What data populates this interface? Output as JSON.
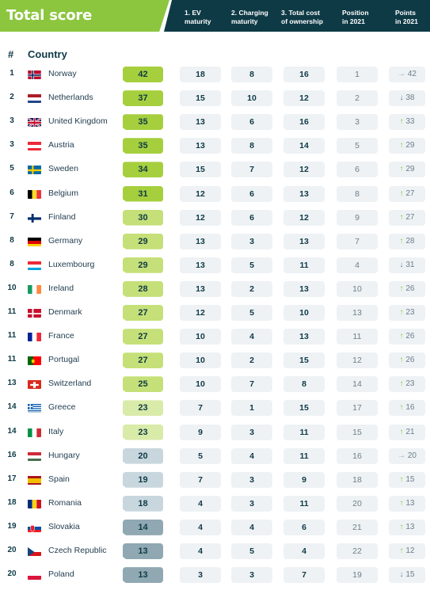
{
  "header": {
    "title": "Total score",
    "columns": [
      {
        "l1": "1. EV",
        "l2": "maturity"
      },
      {
        "l1": "2. Charging",
        "l2": "maturity"
      },
      {
        "l1": "3. Total cost",
        "l2": "of ownership"
      },
      {
        "l1": "Position",
        "l2": "in 2021"
      },
      {
        "l1": "Points",
        "l2": "in 2021"
      }
    ]
  },
  "table": {
    "col_rank": "#",
    "col_country": "Country",
    "rows": [
      {
        "rank": "1",
        "country": "Norway",
        "flag": "norway-flag",
        "score": "42",
        "shade": "g1",
        "ev": "18",
        "charging": "8",
        "tco": "16",
        "pos": "1",
        "trend": "→",
        "trend_dir": "eq",
        "pts": "42"
      },
      {
        "rank": "2",
        "country": "Netherlands",
        "flag": "netherlands-flag",
        "score": "37",
        "shade": "g1",
        "ev": "15",
        "charging": "10",
        "tco": "12",
        "pos": "2",
        "trend": "↓",
        "trend_dir": "dn",
        "pts": "38"
      },
      {
        "rank": "3",
        "country": "United Kingdom",
        "flag": "uk-flag",
        "score": "35",
        "shade": "g1",
        "ev": "13",
        "charging": "6",
        "tco": "16",
        "pos": "3",
        "trend": "↑",
        "trend_dir": "up",
        "pts": "33"
      },
      {
        "rank": "3",
        "country": "Austria",
        "flag": "austria-flag",
        "score": "35",
        "shade": "g1",
        "ev": "13",
        "charging": "8",
        "tco": "14",
        "pos": "5",
        "trend": "↑",
        "trend_dir": "up",
        "pts": "29"
      },
      {
        "rank": "5",
        "country": "Sweden",
        "flag": "sweden-flag",
        "score": "34",
        "shade": "g1",
        "ev": "15",
        "charging": "7",
        "tco": "12",
        "pos": "6",
        "trend": "↑",
        "trend_dir": "up",
        "pts": "29"
      },
      {
        "rank": "6",
        "country": "Belgium",
        "flag": "belgium-flag",
        "score": "31",
        "shade": "g1",
        "ev": "12",
        "charging": "6",
        "tco": "13",
        "pos": "8",
        "trend": "↑",
        "trend_dir": "up",
        "pts": "27"
      },
      {
        "rank": "7",
        "country": "Finland",
        "flag": "finland-flag",
        "score": "30",
        "shade": "g2",
        "ev": "12",
        "charging": "6",
        "tco": "12",
        "pos": "9",
        "trend": "↑",
        "trend_dir": "up",
        "pts": "27"
      },
      {
        "rank": "8",
        "country": "Germany",
        "flag": "germany-flag",
        "score": "29",
        "shade": "g2",
        "ev": "13",
        "charging": "3",
        "tco": "13",
        "pos": "7",
        "trend": "↑",
        "trend_dir": "up",
        "pts": "28"
      },
      {
        "rank": "8",
        "country": "Luxembourg",
        "flag": "luxembourg-flag",
        "score": "29",
        "shade": "g2",
        "ev": "13",
        "charging": "5",
        "tco": "11",
        "pos": "4",
        "trend": "↓",
        "trend_dir": "dn",
        "pts": "31"
      },
      {
        "rank": "10",
        "country": "Ireland",
        "flag": "ireland-flag",
        "score": "28",
        "shade": "g2",
        "ev": "13",
        "charging": "2",
        "tco": "13",
        "pos": "10",
        "trend": "↑",
        "trend_dir": "up",
        "pts": "26"
      },
      {
        "rank": "11",
        "country": "Denmark",
        "flag": "denmark-flag",
        "score": "27",
        "shade": "g2",
        "ev": "12",
        "charging": "5",
        "tco": "10",
        "pos": "13",
        "trend": "↑",
        "trend_dir": "up",
        "pts": "23"
      },
      {
        "rank": "11",
        "country": "France",
        "flag": "france-flag",
        "score": "27",
        "shade": "g2",
        "ev": "10",
        "charging": "4",
        "tco": "13",
        "pos": "11",
        "trend": "↑",
        "trend_dir": "up",
        "pts": "26"
      },
      {
        "rank": "11",
        "country": "Portugal",
        "flag": "portugal-flag",
        "score": "27",
        "shade": "g2",
        "ev": "10",
        "charging": "2",
        "tco": "15",
        "pos": "12",
        "trend": "↑",
        "trend_dir": "up",
        "pts": "26"
      },
      {
        "rank": "13",
        "country": "Switzerland",
        "flag": "switzerland-flag",
        "score": "25",
        "shade": "g2",
        "ev": "10",
        "charging": "7",
        "tco": "8",
        "pos": "14",
        "trend": "↑",
        "trend_dir": "up",
        "pts": "23"
      },
      {
        "rank": "14",
        "country": "Greece",
        "flag": "greece-flag",
        "score": "23",
        "shade": "g3",
        "ev": "7",
        "charging": "1",
        "tco": "15",
        "pos": "17",
        "trend": "↑",
        "trend_dir": "up",
        "pts": "16"
      },
      {
        "rank": "14",
        "country": "Italy",
        "flag": "italy-flag",
        "score": "23",
        "shade": "g3",
        "ev": "9",
        "charging": "3",
        "tco": "11",
        "pos": "15",
        "trend": "↑",
        "trend_dir": "up",
        "pts": "21"
      },
      {
        "rank": "16",
        "country": "Hungary",
        "flag": "hungary-flag",
        "score": "20",
        "shade": "b1",
        "ev": "5",
        "charging": "4",
        "tco": "11",
        "pos": "16",
        "trend": "→",
        "trend_dir": "eq",
        "pts": "20"
      },
      {
        "rank": "17",
        "country": "Spain",
        "flag": "spain-flag",
        "score": "19",
        "shade": "b1",
        "ev": "7",
        "charging": "3",
        "tco": "9",
        "pos": "18",
        "trend": "↑",
        "trend_dir": "up",
        "pts": "15"
      },
      {
        "rank": "18",
        "country": "Romania",
        "flag": "romania-flag",
        "score": "18",
        "shade": "b1",
        "ev": "4",
        "charging": "3",
        "tco": "11",
        "pos": "20",
        "trend": "↑",
        "trend_dir": "up",
        "pts": "13"
      },
      {
        "rank": "19",
        "country": "Slovakia",
        "flag": "slovakia-flag",
        "score": "14",
        "shade": "b2",
        "ev": "4",
        "charging": "4",
        "tco": "6",
        "pos": "21",
        "trend": "↑",
        "trend_dir": "up",
        "pts": "13"
      },
      {
        "rank": "20",
        "country": "Czech Republic",
        "flag": "czech-flag",
        "score": "13",
        "shade": "b2",
        "ev": "4",
        "charging": "5",
        "tco": "4",
        "pos": "22",
        "trend": "↑",
        "trend_dir": "up",
        "pts": "12"
      },
      {
        "rank": "20",
        "country": "Poland",
        "flag": "poland-flag",
        "score": "13",
        "shade": "b2",
        "ev": "3",
        "charging": "3",
        "tco": "7",
        "pos": "19",
        "trend": "↓",
        "trend_dir": "dn",
        "pts": "15"
      }
    ]
  }
}
